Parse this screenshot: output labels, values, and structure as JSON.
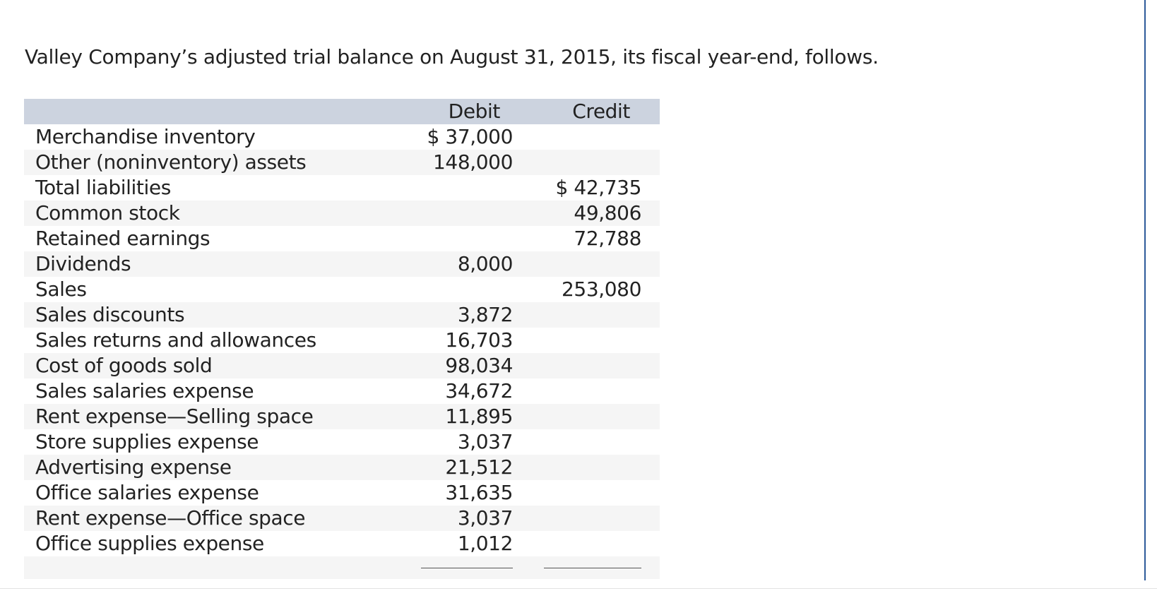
{
  "intro": "Valley Company’s adjusted trial balance on August 31, 2015, its fiscal year-end, follows.",
  "table": {
    "header": {
      "debit": "Debit",
      "credit": "Credit"
    },
    "rows": [
      {
        "account": "Merchandise inventory",
        "debit": "$ 37,000"
      },
      {
        "account": "Other (noninventory) assets",
        "debit": "148,000"
      },
      {
        "account": "Total liabilities",
        "credit": "$ 42,735"
      },
      {
        "account": "Common stock",
        "credit": "49,806"
      },
      {
        "account": "Retained earnings",
        "credit": "72,788"
      },
      {
        "account": "Dividends",
        "debit": "8,000"
      },
      {
        "account": "Sales",
        "credit": "253,080"
      },
      {
        "account": "Sales discounts",
        "debit": "3,872"
      },
      {
        "account": "Sales returns and allowances",
        "debit": "16,703"
      },
      {
        "account": "Cost of goods sold",
        "debit": "98,034"
      },
      {
        "account": "Sales salaries expense",
        "debit": "34,672"
      },
      {
        "account": "Rent expense—Selling space",
        "debit": "11,895"
      },
      {
        "account": "Store supplies expense",
        "debit": "3,037"
      },
      {
        "account": "Advertising expense",
        "debit": "21,512"
      },
      {
        "account": "Office salaries expense",
        "debit": "31,635"
      },
      {
        "account": "Rent expense—Office space",
        "debit": "3,037"
      },
      {
        "account": "Office supplies expense",
        "debit": "1,012"
      }
    ]
  }
}
